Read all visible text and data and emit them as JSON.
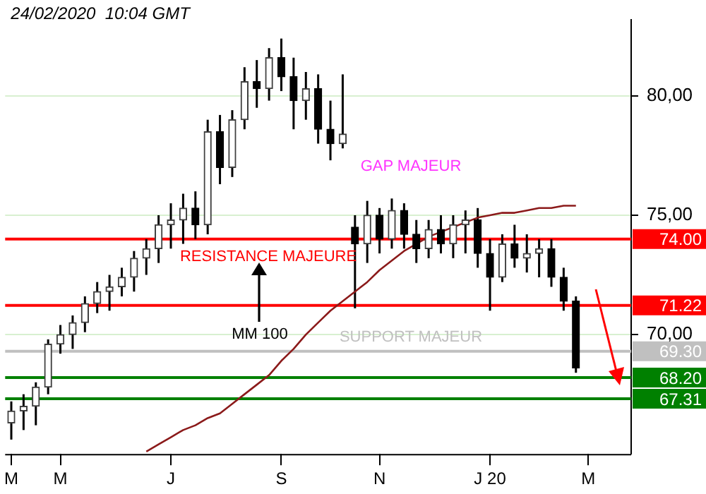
{
  "chart_data": {
    "type": "candlestick",
    "title": "24/02/2020  10:04 GMT",
    "annotations": [
      "GAP MAJEUR",
      "RESISTANCE MAJEURE",
      "SUPPORT MAJEUR",
      "MM 100"
    ],
    "categories": [
      "M",
      null,
      null,
      null,
      "M",
      null,
      null,
      null,
      null,
      null,
      null,
      null,
      null,
      "J",
      null,
      null,
      null,
      null,
      null,
      null,
      null,
      null,
      "S",
      null,
      null,
      null,
      null,
      null,
      null,
      null,
      "N",
      null,
      null,
      null,
      null,
      null,
      null,
      null,
      null,
      "J 20",
      null,
      null,
      null,
      null,
      null,
      null,
      null,
      "M",
      null,
      null,
      null
    ],
    "ohlc": [
      [
        66.3,
        67.2,
        65.6,
        66.8
      ],
      [
        66.8,
        67.5,
        66.0,
        67.0
      ],
      [
        67.0,
        68.0,
        66.2,
        67.8
      ],
      [
        67.8,
        69.8,
        67.5,
        69.6
      ],
      [
        69.6,
        70.4,
        69.2,
        70.0
      ],
      [
        70.0,
        70.8,
        69.4,
        70.5
      ],
      [
        70.5,
        71.6,
        70.1,
        71.3
      ],
      [
        71.3,
        72.2,
        70.9,
        71.8
      ],
      [
        71.8,
        72.5,
        71.0,
        72.0
      ],
      [
        72.0,
        72.8,
        71.6,
        72.4
      ],
      [
        72.4,
        73.5,
        71.8,
        73.2
      ],
      [
        73.2,
        74.0,
        72.5,
        73.6
      ],
      [
        73.6,
        75.0,
        73.0,
        74.6
      ],
      [
        74.6,
        75.5,
        73.6,
        74.8
      ],
      [
        74.8,
        75.9,
        73.8,
        75.3
      ],
      [
        75.3,
        76.0,
        74.0,
        74.6
      ],
      [
        74.6,
        79.0,
        74.2,
        78.5
      ],
      [
        78.5,
        79.2,
        76.3,
        77.0
      ],
      [
        77.0,
        79.4,
        76.6,
        79.0
      ],
      [
        79.0,
        81.2,
        78.6,
        80.6
      ],
      [
        80.6,
        81.5,
        79.5,
        80.3
      ],
      [
        80.3,
        82.0,
        79.8,
        81.6
      ],
      [
        81.6,
        82.4,
        80.2,
        80.8
      ],
      [
        80.8,
        81.6,
        78.6,
        79.8
      ],
      [
        79.8,
        81.0,
        79.0,
        80.3
      ],
      [
        80.3,
        80.9,
        78.0,
        78.6
      ],
      [
        78.6,
        79.8,
        77.3,
        78.0
      ],
      [
        78.0,
        80.9,
        77.8,
        78.4
      ],
      [
        74.5,
        75.0,
        71.1,
        73.8
      ],
      [
        73.8,
        75.6,
        73.0,
        75.0
      ],
      [
        75.0,
        75.3,
        73.4,
        74.0
      ],
      [
        74.0,
        75.7,
        73.6,
        75.2
      ],
      [
        75.2,
        75.5,
        73.6,
        74.2
      ],
      [
        74.2,
        74.8,
        73.0,
        73.6
      ],
      [
        73.6,
        74.8,
        73.2,
        74.4
      ],
      [
        74.4,
        75.0,
        73.4,
        73.8
      ],
      [
        73.8,
        75.0,
        73.2,
        74.6
      ],
      [
        74.6,
        75.2,
        73.4,
        74.8
      ],
      [
        74.8,
        75.3,
        72.8,
        73.4
      ],
      [
        73.4,
        74.0,
        71.0,
        72.4
      ],
      [
        72.4,
        74.2,
        72.2,
        73.8
      ],
      [
        73.8,
        74.6,
        72.8,
        73.2
      ],
      [
        73.2,
        74.2,
        72.6,
        73.4
      ],
      [
        73.4,
        74.0,
        72.4,
        73.6
      ],
      [
        73.6,
        74.0,
        72.0,
        72.4
      ],
      [
        72.4,
        72.8,
        71.0,
        71.4
      ],
      [
        71.4,
        71.6,
        68.4,
        68.6
      ],
      null,
      null,
      null,
      null
    ],
    "series": [
      {
        "type": "line",
        "color": "#8b1a1a",
        "values": [
          null,
          null,
          null,
          null,
          null,
          null,
          null,
          null,
          null,
          null,
          null,
          65.1,
          65.4,
          65.7,
          66.0,
          66.2,
          66.5,
          66.7,
          67.1,
          67.5,
          67.9,
          68.3,
          68.9,
          69.4,
          70.0,
          70.5,
          71.0,
          71.4,
          71.8,
          72.2,
          72.7,
          73.1,
          73.5,
          73.8,
          74.1,
          74.3,
          74.5,
          74.7,
          74.9,
          75.0,
          75.1,
          75.1,
          75.2,
          75.3,
          75.3,
          75.4,
          75.4,
          null,
          null,
          null,
          null
        ]
      }
    ],
    "ref_lines": [
      {
        "axis": "y",
        "value": 74.0,
        "label": "74.00",
        "color": "#ff0000"
      },
      {
        "axis": "y",
        "value": 71.22,
        "label": "71.22",
        "color": "#ff0000"
      },
      {
        "axis": "y",
        "value": 69.3,
        "label": "69.30",
        "color": "#c0c0c0"
      },
      {
        "axis": "y",
        "value": 68.2,
        "label": "68.20",
        "color": "#008000"
      },
      {
        "axis": "y",
        "value": 67.31,
        "label": "67.31",
        "color": "#008000"
      }
    ],
    "ylim": [
      65,
      83.2
    ],
    "yticks": [
      {
        "value": 70,
        "label": "70,00"
      },
      {
        "value": 75,
        "label": "75,00"
      },
      {
        "value": 80,
        "label": "80,00"
      }
    ],
    "grid": "y",
    "legend": false
  }
}
